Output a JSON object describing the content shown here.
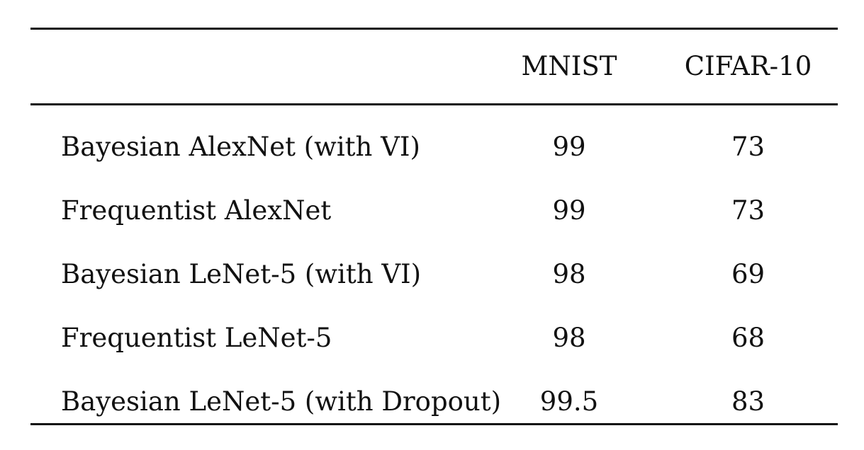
{
  "table": {
    "columns": [
      "",
      "MNIST",
      "CIFAR-10"
    ],
    "rows": [
      {
        "model": "Bayesian AlexNet (with VI)",
        "mnist": "99",
        "cifar10": "73"
      },
      {
        "model": "Frequentist AlexNet",
        "mnist": "99",
        "cifar10": "73"
      },
      {
        "model": "Bayesian LeNet-5 (with VI)",
        "mnist": "98",
        "cifar10": "69"
      },
      {
        "model": "Frequentist LeNet-5",
        "mnist": "98",
        "cifar10": "68"
      },
      {
        "model": "Bayesian LeNet-5 (with Dropout)",
        "mnist": "99.5",
        "cifar10": "83"
      }
    ]
  }
}
